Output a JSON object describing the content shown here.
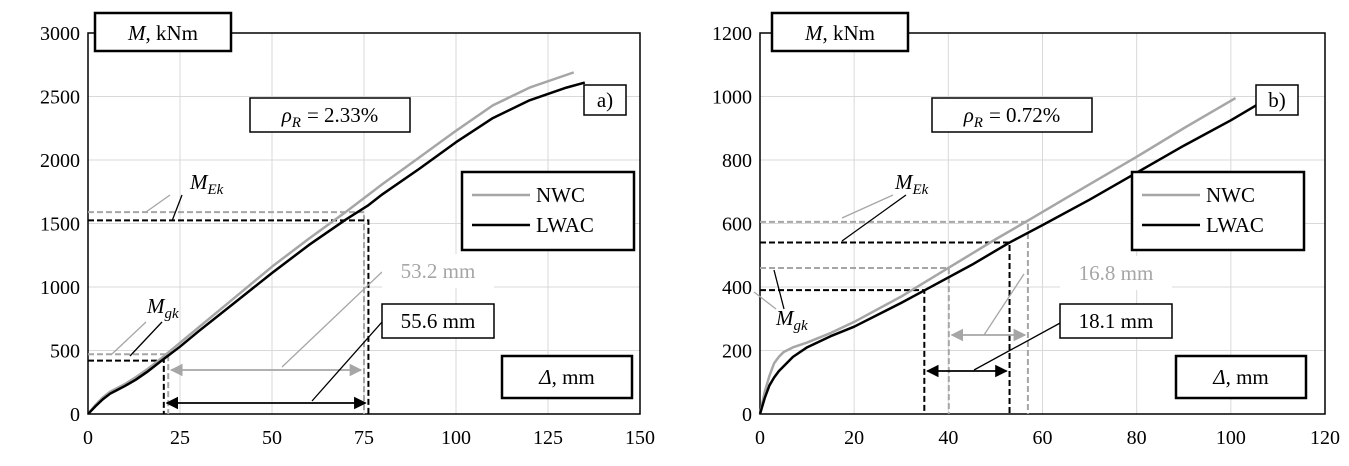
{
  "chart_data": [
    {
      "type": "line",
      "panel_label": "a)",
      "ylabel": "M, kNm",
      "ylabel_symbol": "M",
      "ylabel_unit": ", kNm",
      "xlabel": "Δ, mm",
      "xlabel_symbol": "Δ",
      "xlabel_unit": ", mm",
      "annotation_rho": "ρR = 2.33%",
      "rho_value": "= 2.33%",
      "xlim": [
        0,
        150
      ],
      "ylim": [
        0,
        3000
      ],
      "xticks": [
        0,
        25,
        50,
        75,
        100,
        125,
        150
      ],
      "yticks": [
        0,
        500,
        1000,
        1500,
        2000,
        2500,
        3000
      ],
      "legend": [
        "NWC",
        "LWAC"
      ],
      "grid": true,
      "series": [
        {
          "name": "NWC",
          "color": "#a6a6a6",
          "x": [
            0,
            2,
            4,
            6,
            8,
            10,
            13,
            16,
            20,
            25,
            30,
            40,
            50,
            60,
            70,
            75,
            80,
            90,
            100,
            110,
            120,
            132
          ],
          "y": [
            0,
            70,
            130,
            175,
            205,
            235,
            290,
            350,
            440,
            560,
            680,
            920,
            1160,
            1380,
            1590,
            1700,
            1810,
            2020,
            2230,
            2430,
            2570,
            2690
          ]
        },
        {
          "name": "LWAC",
          "color": "#000000",
          "x": [
            0,
            2,
            4,
            6,
            8,
            10,
            13,
            16,
            20,
            25,
            30,
            40,
            50,
            60,
            70,
            76,
            80,
            90,
            100,
            110,
            120,
            130,
            135
          ],
          "y": [
            0,
            60,
            115,
            160,
            190,
            220,
            270,
            330,
            420,
            530,
            650,
            880,
            1110,
            1330,
            1530,
            1640,
            1730,
            1930,
            2140,
            2330,
            2470,
            2570,
            2610
          ]
        }
      ],
      "moment_levels": {
        "MEk": {
          "label_main": "M",
          "label_sub": "Ek",
          "NWC": 1590,
          "LWAC": 1525
        },
        "Mgk": {
          "label_main": "M",
          "label_sub": "gk",
          "NWC": 470,
          "LWAC": 420
        }
      },
      "deflections": {
        "NWC": {
          "label": "53.2 mm",
          "from": 21.8,
          "to": 75
        },
        "LWAC": {
          "label": "55.6 mm",
          "from": 20.6,
          "to": 76.2
        }
      }
    },
    {
      "type": "line",
      "panel_label": "b)",
      "ylabel": "M, kNm",
      "ylabel_symbol": "M",
      "ylabel_unit": ", kNm",
      "xlabel": "Δ, mm",
      "xlabel_symbol": "Δ",
      "xlabel_unit": ", mm",
      "annotation_rho": "ρR = 0.72%",
      "rho_value": "= 0.72%",
      "xlim": [
        0,
        120
      ],
      "ylim": [
        0,
        1200
      ],
      "xticks": [
        0,
        20,
        40,
        60,
        80,
        100,
        120
      ],
      "yticks": [
        0,
        200,
        400,
        600,
        800,
        1000,
        1200
      ],
      "legend": [
        "NWC",
        "LWAC"
      ],
      "grid": true,
      "series": [
        {
          "name": "NWC",
          "color": "#a6a6a6",
          "x": [
            0,
            1,
            2,
            3,
            4,
            5,
            7,
            10,
            15,
            20,
            30,
            40,
            50,
            57,
            65,
            80,
            90,
            101
          ],
          "y": [
            0,
            70,
            120,
            160,
            180,
            195,
            210,
            225,
            255,
            290,
            370,
            460,
            550,
            610,
            680,
            810,
            900,
            995
          ]
        },
        {
          "name": "LWAC",
          "color": "#000000",
          "x": [
            0,
            1,
            2,
            3,
            4,
            5,
            7,
            10,
            15,
            20,
            30,
            35,
            45,
            53,
            60,
            70,
            80,
            90,
            100,
            108
          ],
          "y": [
            0,
            50,
            90,
            115,
            135,
            150,
            180,
            210,
            245,
            275,
            350,
            390,
            470,
            540,
            595,
            675,
            760,
            845,
            925,
            995
          ]
        }
      ],
      "moment_levels": {
        "MEk": {
          "label_main": "M",
          "label_sub": "Ek",
          "NWC": 605,
          "LWAC": 540
        },
        "Mgk": {
          "label_main": "M",
          "label_sub": "gk",
          "NWC": 460,
          "LWAC": 390
        }
      },
      "deflections": {
        "NWC": {
          "label": "16.8 mm",
          "from": 40.1,
          "to": 56.9
        },
        "LWAC": {
          "label": "18.1 mm",
          "from": 34.9,
          "to": 53.0
        }
      }
    }
  ]
}
